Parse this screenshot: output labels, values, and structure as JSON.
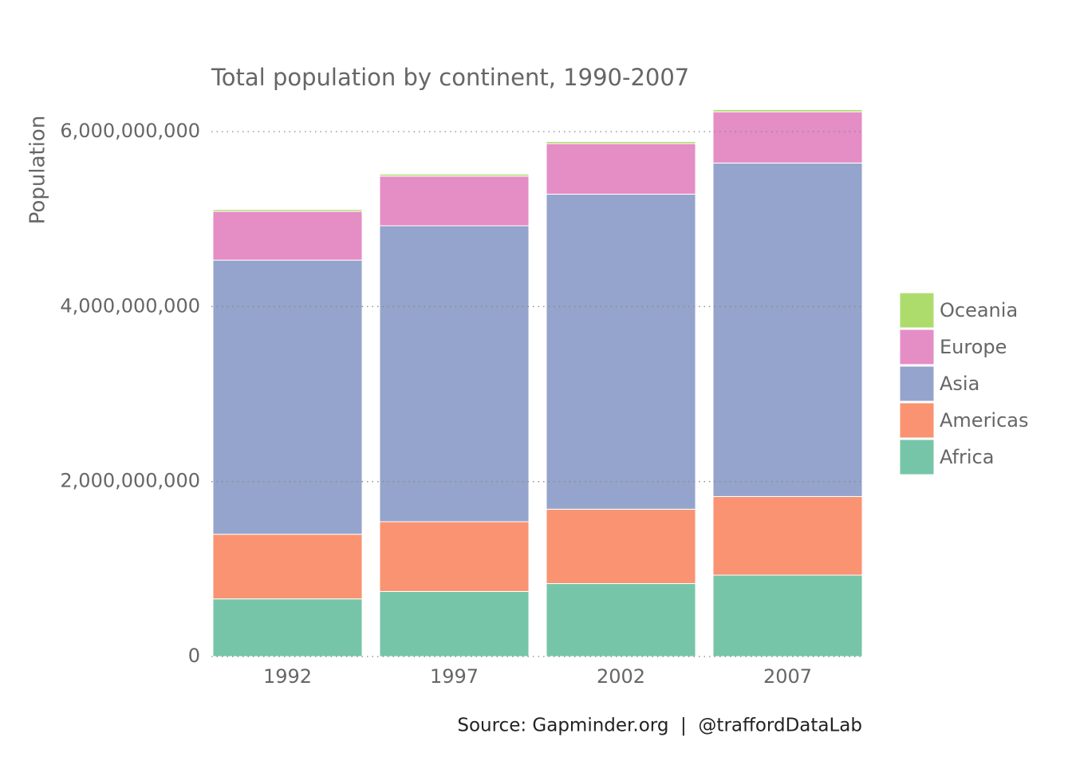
{
  "chart_data": {
    "type": "stacked-bar",
    "title": "Total population by continent, 1990-2007",
    "y_label": "Population",
    "source": "Source: Gapminder.org  |  @traffordDataLab",
    "categories": [
      "1992",
      "1997",
      "2002",
      "2007"
    ],
    "series": [
      {
        "name": "Africa",
        "color": "#77c5a8",
        "values": [
          659000000,
          744000000,
          834000000,
          930000000
        ]
      },
      {
        "name": "Americas",
        "color": "#f99372",
        "values": [
          739000000,
          797000000,
          850000000,
          899000000
        ]
      },
      {
        "name": "Asia",
        "color": "#94a4cc",
        "values": [
          3133000000,
          3383000000,
          3601000000,
          3812000000
        ]
      },
      {
        "name": "Europe",
        "color": "#e58dc5",
        "values": [
          558000000,
          568000000,
          578000000,
          586000000
        ]
      },
      {
        "name": "Oceania",
        "color": "#addc6d",
        "values": [
          21000000,
          22000000,
          23500000,
          24500000
        ]
      }
    ],
    "ylim": [
      0,
      6250000000
    ],
    "yticks": [
      0,
      {
        "value": 2000000000,
        "label": "2,000,000,000"
      },
      {
        "value": 4000000000,
        "label": "4,000,000,000"
      },
      {
        "value": 6000000000,
        "label": "6,000,000,000"
      }
    ],
    "grid": true
  }
}
